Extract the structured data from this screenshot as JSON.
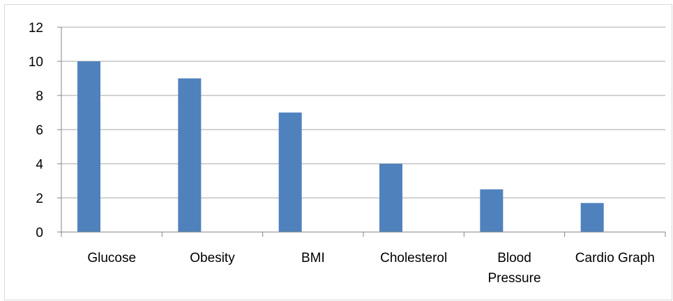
{
  "chart_data": {
    "type": "bar",
    "categories": [
      "Glucose",
      "Obesity",
      "BMI",
      "Cholesterol",
      "Blood Pressure",
      "Cardio Graph"
    ],
    "category_lines": [
      [
        "Glucose"
      ],
      [
        "Obesity"
      ],
      [
        "BMI"
      ],
      [
        "Cholesterol"
      ],
      [
        "Blood",
        "Pressure"
      ],
      [
        "Cardio Graph"
      ]
    ],
    "values": [
      10,
      9,
      7,
      4,
      2.5,
      1.7
    ],
    "ylim": [
      0,
      12
    ],
    "yticks": [
      0,
      2,
      4,
      6,
      8,
      10,
      12
    ],
    "ytick_labels": [
      "0",
      "2",
      "4",
      "6",
      "8",
      "10",
      "12"
    ],
    "grid": true,
    "legend": "none",
    "title": "",
    "xlabel": "",
    "ylabel": "",
    "colors": {
      "bar": "#4F81BD",
      "gridline": "#A6A6A6",
      "axis": "#868686",
      "border": "#D9D9D9"
    }
  }
}
